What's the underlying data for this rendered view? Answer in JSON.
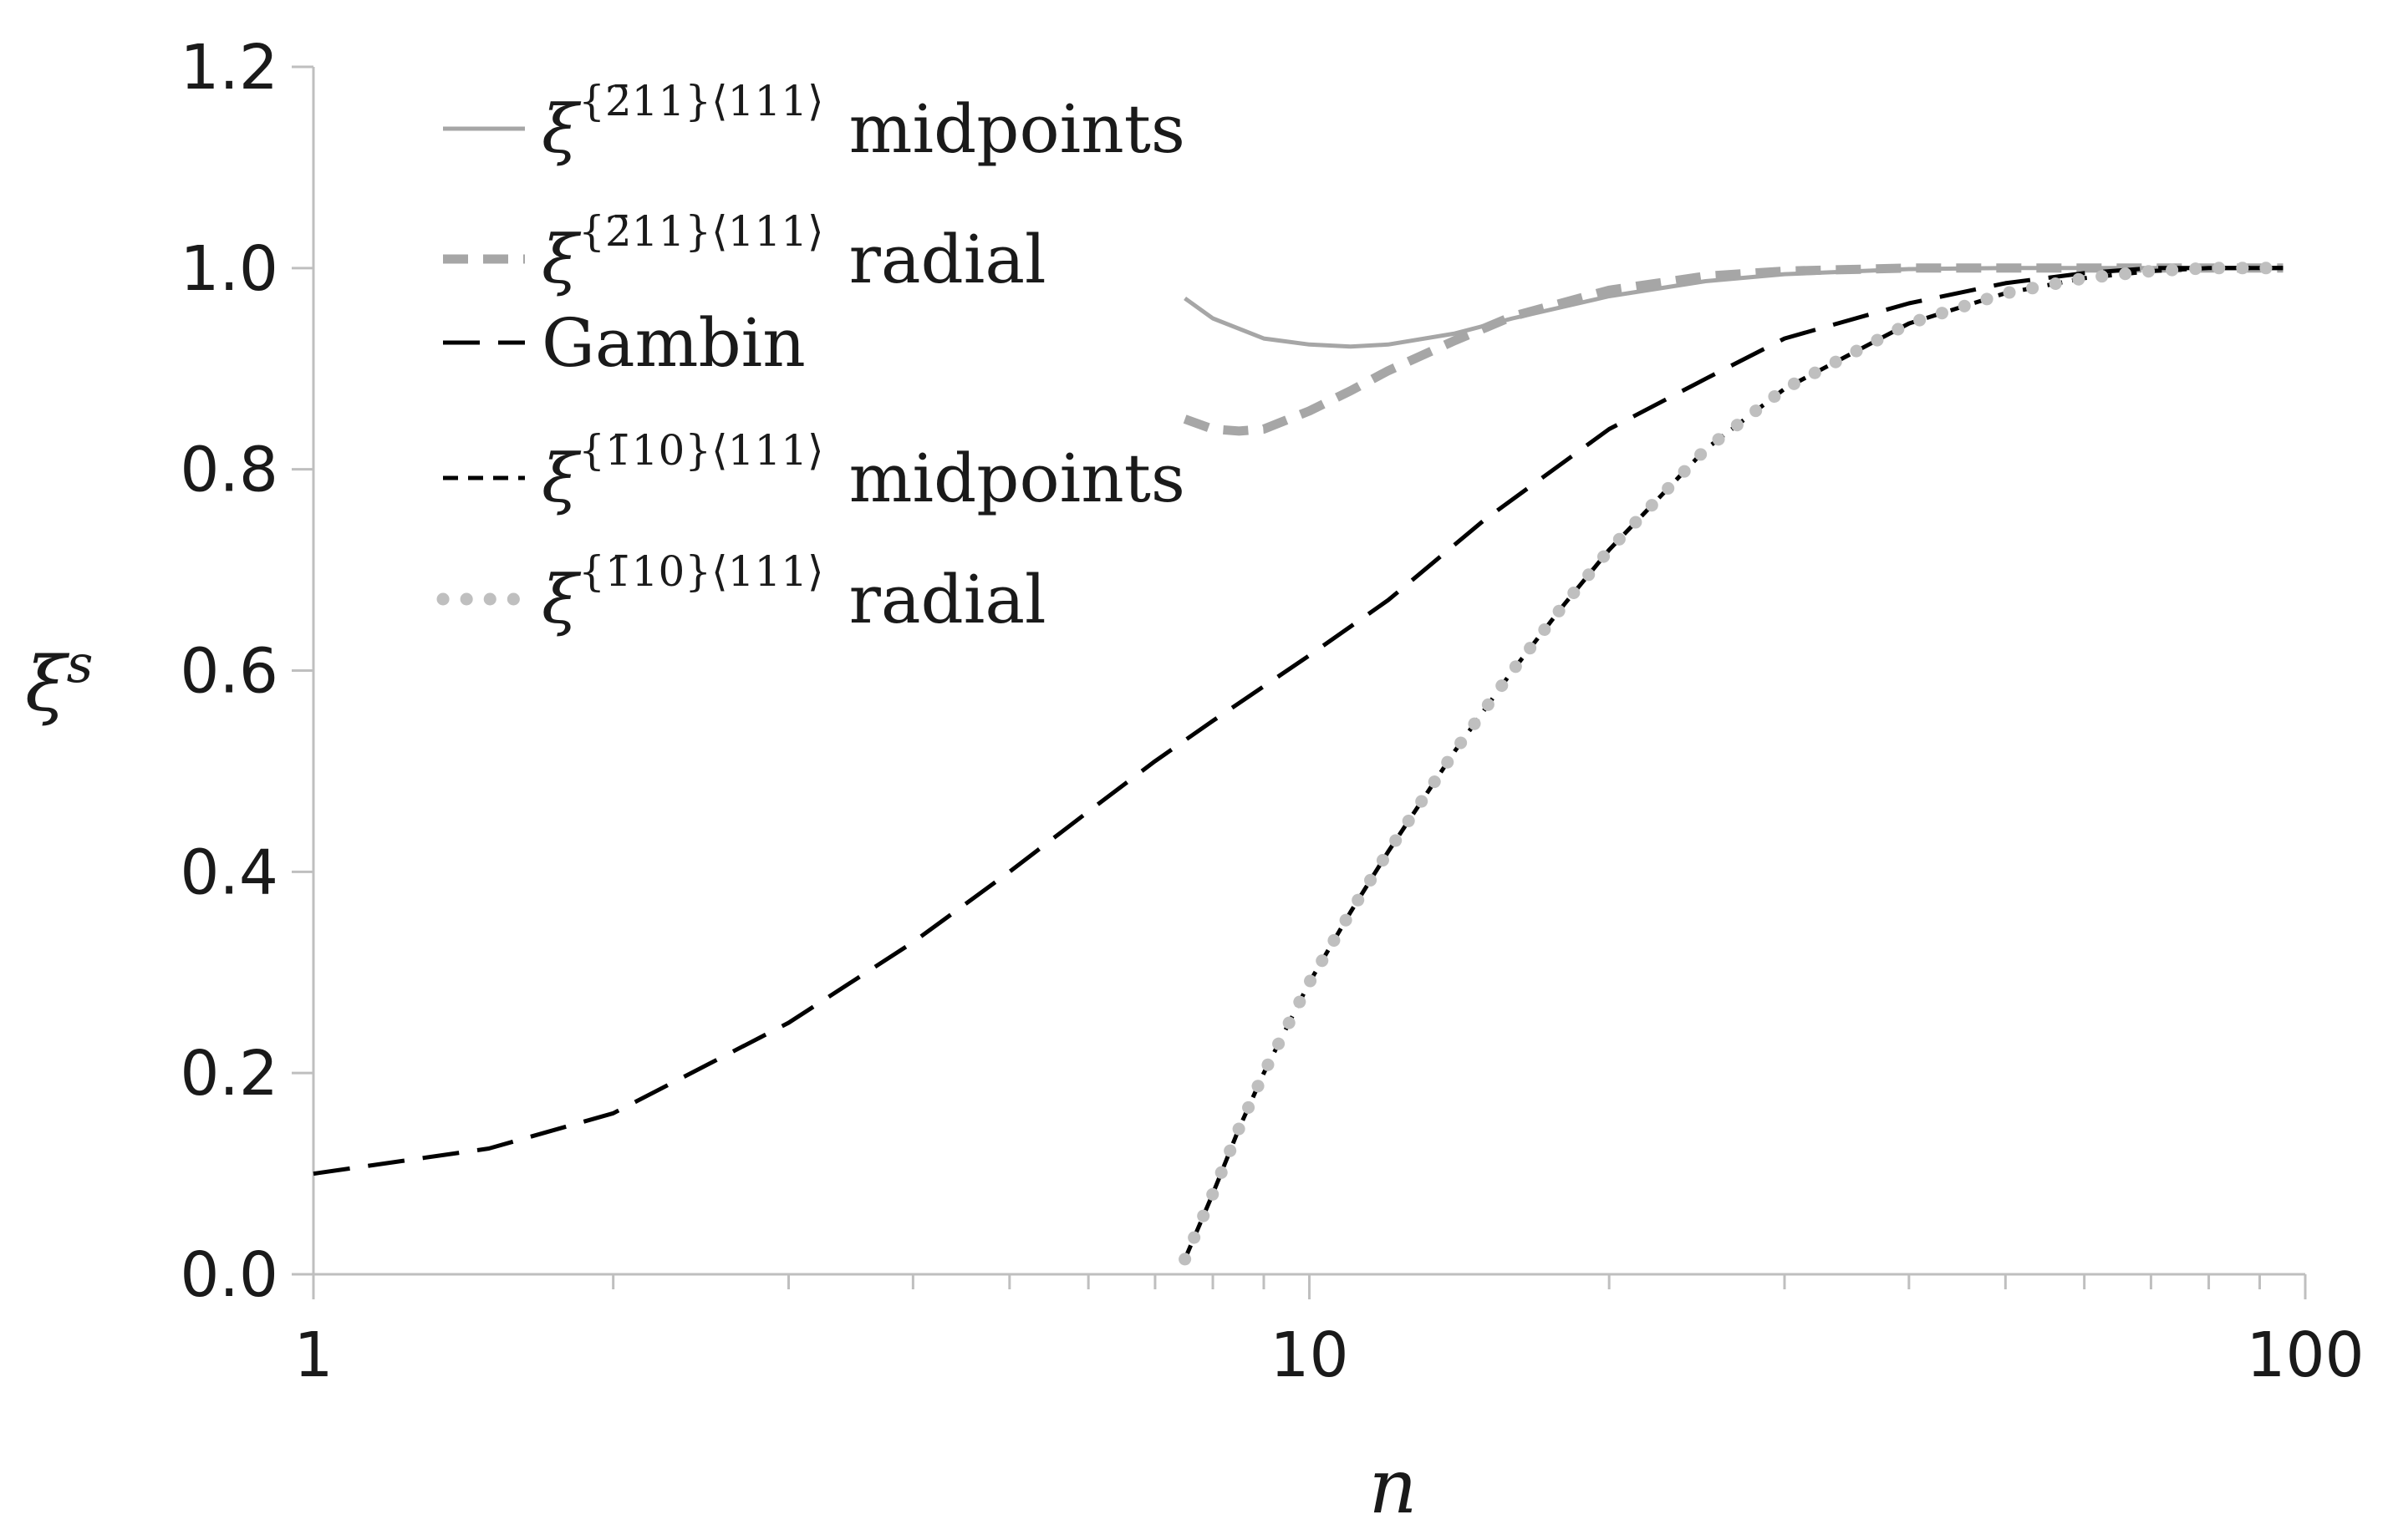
{
  "chart_data": {
    "type": "line",
    "xlabel": "n",
    "ylabel_symbol": "ξ",
    "ylabel_sup": "s",
    "xscale": "log",
    "xlim": [
      1,
      100
    ],
    "ylim": [
      0,
      1.2
    ],
    "x_ticks": [
      "1",
      "10",
      "100"
    ],
    "y_ticks": [
      "0.0",
      "0.2",
      "0.4",
      "0.6",
      "0.8",
      "1.0",
      "1.2"
    ],
    "grid": false,
    "legend_position": "top-left",
    "series": [
      {
        "name_symbol": "ξ",
        "name_sup": "{2̄11}⟨111⟩",
        "name_text": "midpoints",
        "style": "solid",
        "color": "#a6a6a6",
        "x": [
          7.5,
          8,
          9,
          10,
          11,
          12,
          14,
          16,
          20,
          25,
          30,
          40,
          50,
          60,
          70,
          80,
          90,
          95
        ],
        "y": [
          0.97,
          0.95,
          0.93,
          0.924,
          0.922,
          0.924,
          0.935,
          0.95,
          0.972,
          0.987,
          0.994,
          0.999,
          1.0,
          1.0,
          1.0,
          1.0,
          1.0,
          1.0
        ]
      },
      {
        "name_symbol": "ξ",
        "name_sup": "{2̄11}⟨111⟩",
        "name_text": "radial",
        "style": "dashed-thick",
        "color": "#a6a6a6",
        "x": [
          7.5,
          8,
          8.5,
          9,
          10,
          11,
          12,
          14,
          16,
          20,
          25,
          30,
          40,
          50,
          60,
          70,
          80,
          90,
          95
        ],
        "y": [
          0.85,
          0.84,
          0.838,
          0.84,
          0.858,
          0.878,
          0.898,
          0.928,
          0.952,
          0.978,
          0.992,
          0.997,
          1.0,
          1.0,
          1.0,
          1.0,
          1.0,
          1.0,
          1.0
        ]
      },
      {
        "name_text": "Gambin",
        "style": "long-dash",
        "color": "#000000",
        "x": [
          1,
          1.5,
          2,
          3,
          4,
          5,
          6,
          7,
          8,
          10,
          12,
          15,
          20,
          25,
          30,
          40,
          50,
          60,
          70,
          80,
          90,
          95
        ],
        "y": [
          0.1,
          0.125,
          0.16,
          0.25,
          0.33,
          0.4,
          0.46,
          0.51,
          0.55,
          0.615,
          0.67,
          0.75,
          0.84,
          0.89,
          0.93,
          0.965,
          0.985,
          0.995,
          1.0,
          1.0,
          1.0,
          1.0
        ]
      },
      {
        "name_symbol": "ξ",
        "name_sup": "{1̄10}⟨111⟩",
        "name_text": "midpoints",
        "style": "short-dash",
        "color": "#000000",
        "x": [
          7.5,
          8,
          8.5,
          9,
          10,
          11,
          12,
          14,
          16,
          18,
          20,
          25,
          30,
          40,
          50,
          60,
          70,
          80,
          90,
          95
        ],
        "y": [
          0.015,
          0.08,
          0.145,
          0.2,
          0.29,
          0.36,
          0.42,
          0.52,
          0.6,
          0.665,
          0.72,
          0.82,
          0.88,
          0.945,
          0.975,
          0.99,
          0.997,
          1.0,
          1.0,
          1.0
        ]
      },
      {
        "name_symbol": "ξ",
        "name_sup": "{1̄10}⟨111⟩",
        "name_text": "radial",
        "style": "dotted",
        "color": "#bfbfbf",
        "x": [
          7.5,
          8,
          8.5,
          9,
          10,
          11,
          12,
          14,
          16,
          18,
          20,
          25,
          30,
          40,
          50,
          60,
          70,
          80,
          90,
          95
        ],
        "y": [
          0.015,
          0.08,
          0.145,
          0.2,
          0.29,
          0.36,
          0.42,
          0.52,
          0.6,
          0.665,
          0.72,
          0.82,
          0.88,
          0.945,
          0.975,
          0.99,
          0.997,
          1.0,
          1.0,
          1.0
        ]
      }
    ]
  }
}
